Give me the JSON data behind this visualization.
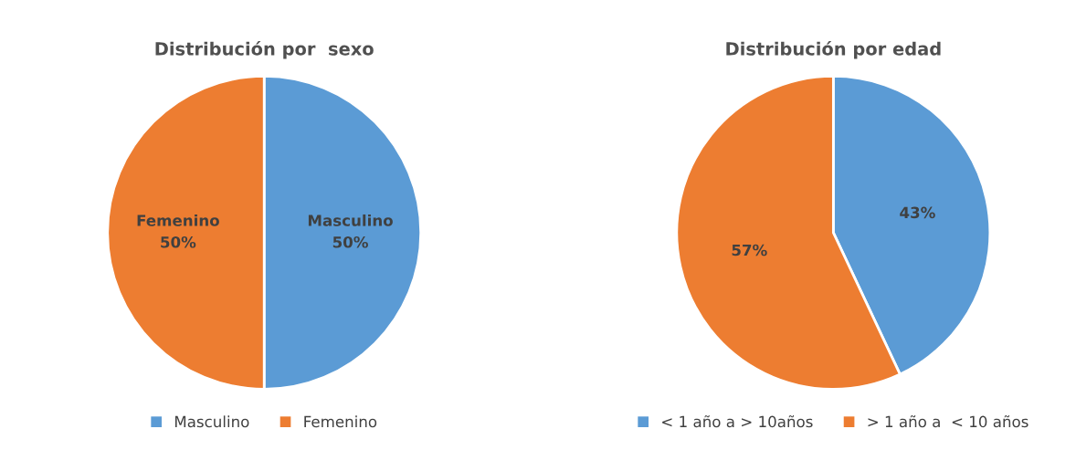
{
  "chart_data": [
    {
      "type": "pie",
      "title": "Distribución por  sexo",
      "categories": [
        "Masculino",
        "Femenino"
      ],
      "values": [
        50,
        50
      ],
      "colors": [
        "#5b9bd5",
        "#ed7d31"
      ],
      "value_labels": [
        "Masculino\n50%",
        "Femenino\n50%"
      ],
      "legend": "bottom"
    },
    {
      "type": "pie",
      "title": "Distribución por edad",
      "categories": [
        "< 1 año a > 10años",
        "> 1 año a  < 10 años"
      ],
      "values": [
        43,
        57
      ],
      "colors": [
        "#5b9bd5",
        "#ed7d31"
      ],
      "value_labels": [
        "43%",
        "57%"
      ],
      "legend": "bottom"
    }
  ]
}
